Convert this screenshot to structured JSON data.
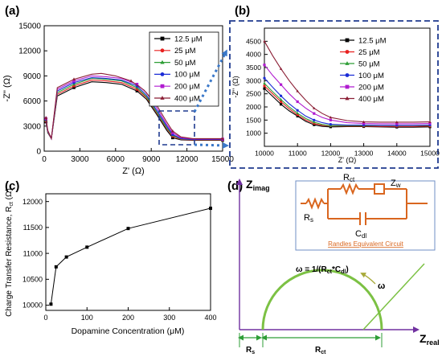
{
  "colors": {
    "series": [
      "#000000",
      "#e8201f",
      "#2e9e36",
      "#1a2bd6",
      "#b01bd0",
      "#8b1f35"
    ],
    "dashed_box": "#1f3a8f",
    "arrow": "#3a78c9",
    "circuit": "#d9661f",
    "circuit_box": "#6f8fc4",
    "semicircle": "#7cc144",
    "axis_purple": "#7030a0",
    "green_label": "#2e9e36"
  },
  "chart_data": [
    {
      "type": "line",
      "panel_label": "(a)",
      "xlabel": "Z' (Ω)",
      "ylabel": "-Z'' (Ω)",
      "xlim": [
        0,
        15000
      ],
      "ylim": [
        0,
        15000
      ],
      "xticks": [
        "0",
        "3000",
        "6000",
        "9000",
        "12000",
        "15000"
      ],
      "yticks": [
        "0",
        "3000",
        "6000",
        "9000",
        "12000",
        "15000"
      ],
      "legend_position": "top-right",
      "series": [
        {
          "name": "12.5 μM",
          "x": [
            150,
            300,
            600,
            1100,
            2500,
            4000,
            5200,
            6500,
            7800,
            8600,
            9500,
            10300,
            10800,
            11500,
            12500,
            14000,
            15000
          ],
          "y": [
            3500,
            2200,
            1500,
            6600,
            7600,
            8300,
            8200,
            8000,
            7200,
            6200,
            4300,
            2500,
            1600,
            1350,
            1300,
            1300,
            1300
          ]
        },
        {
          "name": "25 μM",
          "x": [
            150,
            300,
            600,
            1100,
            2500,
            4000,
            5200,
            6500,
            7800,
            8600,
            9500,
            10300,
            10800,
            11500,
            12500,
            14000,
            15000
          ],
          "y": [
            3600,
            2300,
            1500,
            6800,
            7800,
            8500,
            8400,
            8200,
            7400,
            6400,
            4500,
            2700,
            1800,
            1400,
            1350,
            1350,
            1350
          ]
        },
        {
          "name": "50 μM",
          "x": [
            150,
            300,
            600,
            1100,
            2500,
            4000,
            5200,
            6500,
            7800,
            8600,
            9500,
            10300,
            10800,
            11500,
            12500,
            14000,
            15000
          ],
          "y": [
            3700,
            2300,
            1500,
            7000,
            8000,
            8700,
            8600,
            8400,
            7600,
            6500,
            4600,
            2800,
            1900,
            1450,
            1380,
            1380,
            1380
          ]
        },
        {
          "name": "100 μM",
          "x": [
            150,
            300,
            600,
            1100,
            2500,
            4000,
            5200,
            6500,
            7800,
            8600,
            9500,
            10300,
            10800,
            11500,
            12500,
            14000,
            15000
          ],
          "y": [
            3800,
            2400,
            1500,
            7200,
            8200,
            8800,
            8700,
            8500,
            7800,
            6700,
            4800,
            3000,
            2000,
            1500,
            1400,
            1400,
            1400
          ]
        },
        {
          "name": "200 μM",
          "x": [
            150,
            300,
            600,
            1100,
            2500,
            4000,
            5200,
            6500,
            7800,
            8600,
            9500,
            10300,
            10800,
            11500,
            12500,
            14000,
            15000
          ],
          "y": [
            3900,
            2400,
            1500,
            7400,
            8400,
            9000,
            8900,
            8700,
            8000,
            7000,
            5100,
            3200,
            2200,
            1600,
            1450,
            1450,
            1450
          ]
        },
        {
          "name": "400 μM",
          "x": [
            150,
            300,
            600,
            1100,
            2500,
            4000,
            4800,
            6000,
            7300,
            8400,
            9500,
            10300,
            10800,
            11500,
            12500,
            14000,
            15000
          ],
          "y": [
            4000,
            2500,
            1500,
            7600,
            8600,
            9200,
            9300,
            9000,
            8400,
            7300,
            5400,
            3500,
            2400,
            1700,
            1500,
            1500,
            1500
          ]
        }
      ]
    },
    {
      "type": "line",
      "panel_label": "(b)",
      "xlabel": "Z' (Ω)",
      "ylabel": "-Z'' (Ω)",
      "xlim": [
        10000,
        15000
      ],
      "ylim": [
        500,
        5000
      ],
      "xticks": [
        "10000",
        "11000",
        "12000",
        "13000",
        "14000",
        "15000"
      ],
      "yticks": [
        "1000",
        "1500",
        "2000",
        "2500",
        "3000",
        "3500",
        "4000",
        "4500"
      ],
      "legend_position": "top-right",
      "series": [
        {
          "name": "12.5 μM",
          "x": [
            10000,
            10250,
            10500,
            10750,
            11000,
            11250,
            11500,
            11750,
            12000,
            12500,
            13000,
            13500,
            14000,
            14500,
            15000
          ],
          "y": [
            2700,
            2400,
            2100,
            1850,
            1650,
            1450,
            1320,
            1260,
            1240,
            1250,
            1250,
            1240,
            1230,
            1230,
            1240
          ]
        },
        {
          "name": "25 μM",
          "x": [
            10000,
            10250,
            10500,
            10750,
            11000,
            11250,
            11500,
            11750,
            12000,
            12500,
            13000,
            13500,
            14000,
            14500,
            15000
          ],
          "y": [
            2800,
            2500,
            2200,
            1930,
            1700,
            1500,
            1370,
            1300,
            1280,
            1270,
            1270,
            1260,
            1260,
            1260,
            1270
          ]
        },
        {
          "name": "50 μM",
          "x": [
            10000,
            10250,
            10500,
            10750,
            11000,
            11250,
            11500,
            11750,
            12000,
            12500,
            13000,
            13500,
            14000,
            14500,
            15000
          ],
          "y": [
            2900,
            2580,
            2280,
            2000,
            1760,
            1560,
            1420,
            1330,
            1290,
            1290,
            1290,
            1290,
            1290,
            1290,
            1300
          ]
        },
        {
          "name": "100 μM",
          "x": [
            10000,
            10250,
            10500,
            10750,
            11000,
            11250,
            11500,
            11750,
            12000,
            12500,
            13000,
            13500,
            14000,
            14500,
            15000
          ],
          "y": [
            3100,
            2750,
            2420,
            2120,
            1870,
            1650,
            1500,
            1400,
            1340,
            1310,
            1310,
            1300,
            1300,
            1300,
            1310
          ]
        },
        {
          "name": "200 μM",
          "x": [
            10000,
            10250,
            10500,
            10750,
            11000,
            11250,
            11500,
            11750,
            12000,
            12500,
            13000,
            13500,
            14000,
            14500,
            15000
          ],
          "y": [
            3600,
            3200,
            2850,
            2500,
            2200,
            1950,
            1750,
            1600,
            1500,
            1400,
            1370,
            1360,
            1360,
            1360,
            1370
          ]
        },
        {
          "name": "400 μM",
          "x": [
            10000,
            10250,
            10500,
            10750,
            11000,
            11250,
            11500,
            11750,
            12000,
            12500,
            13000,
            13500,
            14000,
            14500,
            15000
          ],
          "y": [
            4500,
            3950,
            3450,
            3000,
            2600,
            2250,
            1950,
            1750,
            1600,
            1480,
            1430,
            1420,
            1420,
            1420,
            1430
          ]
        }
      ]
    },
    {
      "type": "line",
      "panel_label": "(c)",
      "xlabel": "Dopamine Concentration (μM)",
      "ylabel_main": "Charge Transfer Resistance, R",
      "ylabel_sub": "ct",
      "ylabel_unit": " (Ω)",
      "xlim": [
        0,
        400
      ],
      "ylim": [
        9900,
        12150
      ],
      "xticks": [
        "0",
        "100",
        "200",
        "300",
        "400"
      ],
      "yticks": [
        "10000",
        "10500",
        "11000",
        "11500",
        "12000"
      ],
      "series": [
        {
          "x": [
            12.5,
            25,
            50,
            100,
            200,
            400
          ],
          "y": [
            10020,
            10740,
            10930,
            11120,
            11480,
            11870
          ]
        }
      ]
    }
  ],
  "panel_d": {
    "panel_label": "(d)",
    "y_axis_main": "Z",
    "y_axis_sub": "imag",
    "x_axis_main": "Z",
    "x_axis_sub": "real",
    "circuit": {
      "rs_main": "R",
      "rs_sub": "s",
      "rct_main": "R",
      "rct_sub": "ct",
      "zw_main": "Z",
      "zw_sub": "w",
      "cdl_main": "C",
      "cdl_sub": "dl",
      "caption": "Randles Equivalent Circuit"
    },
    "omega_formula": "ω = 1/(R",
    "omega_formula_sub1": "ct",
    "omega_formula_mid": "*C",
    "omega_formula_sub2": "dl",
    "omega_formula_end": ")",
    "omega_label": "ω",
    "rs_main": "R",
    "rs_sub": "s",
    "rct_main": "R",
    "rct_sub": "ct"
  }
}
